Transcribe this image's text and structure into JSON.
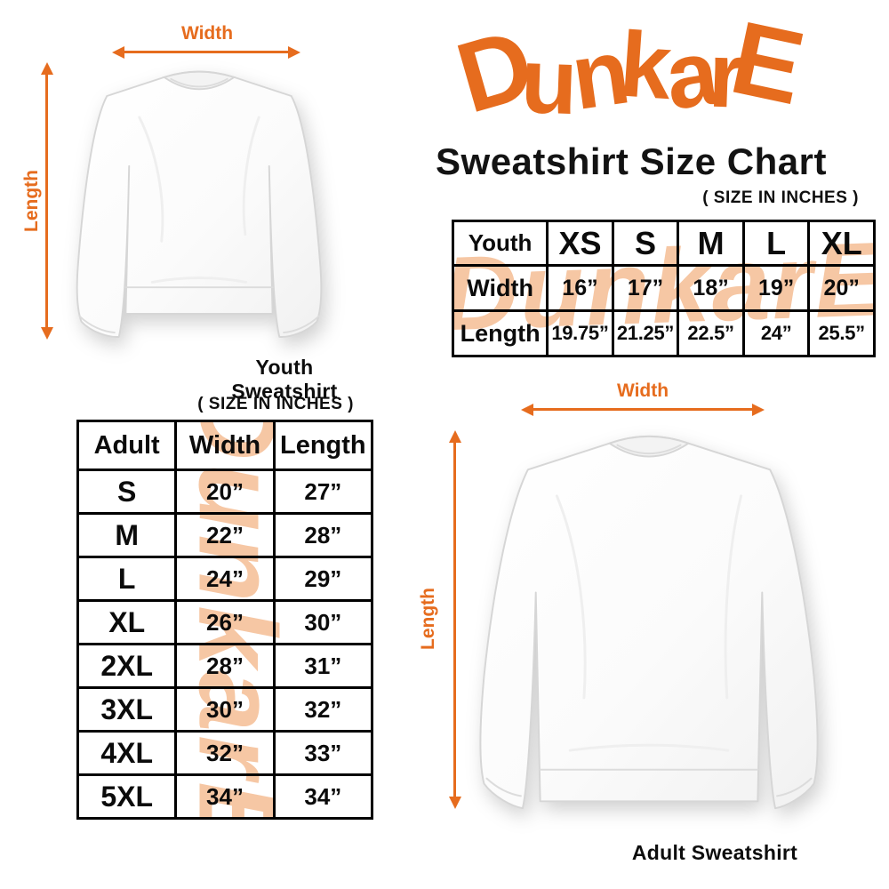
{
  "brand": {
    "logo_text": "DunkarE",
    "title": "Sweatshirt Size Chart",
    "size_note": "( SIZE IN INCHES )"
  },
  "colors": {
    "accent_orange": "#E66C1E",
    "watermark_peach": "#F6C7A4",
    "text_black": "#141414"
  },
  "watermark_text": "DunkarE",
  "youth_diagram": {
    "width_label": "Width",
    "length_label": "Length",
    "caption": "Youth Sweatshirt"
  },
  "adult_diagram": {
    "width_label": "Width",
    "length_label": "Length",
    "caption": "Adult Sweatshirt"
  },
  "youth_table": {
    "columns": [
      "Youth",
      "XS",
      "S",
      "M",
      "L",
      "XL"
    ],
    "rows": [
      {
        "label": "Width",
        "values": [
          "16”",
          "17”",
          "18”",
          "19”",
          "20”"
        ]
      },
      {
        "label": "Length",
        "values": [
          "19.75”",
          "21.25”",
          "22.5”",
          "24”",
          "25.5”"
        ]
      }
    ]
  },
  "adult_table": {
    "size_note": "( SIZE IN INCHES )",
    "columns": [
      "Adult",
      "Width",
      "Length"
    ],
    "rows": [
      {
        "size": "S",
        "width": "20”",
        "length": "27”"
      },
      {
        "size": "M",
        "width": "22”",
        "length": "28”"
      },
      {
        "size": "L",
        "width": "24”",
        "length": "29”"
      },
      {
        "size": "XL",
        "width": "26”",
        "length": "30”"
      },
      {
        "size": "2XL",
        "width": "28”",
        "length": "31”"
      },
      {
        "size": "3XL",
        "width": "30”",
        "length": "32”"
      },
      {
        "size": "4XL",
        "width": "32”",
        "length": "33”"
      },
      {
        "size": "5XL",
        "width": "34”",
        "length": "34”"
      }
    ]
  },
  "chart_data": [
    {
      "type": "table",
      "title": "Youth Sweatshirt sizes (inches)",
      "columns": [
        "Youth",
        "XS",
        "S",
        "M",
        "L",
        "XL"
      ],
      "rows": [
        [
          "Width",
          "16",
          "17",
          "18",
          "19",
          "20"
        ],
        [
          "Length",
          "19.75",
          "21.25",
          "22.5",
          "24",
          "25.5"
        ]
      ]
    },
    {
      "type": "table",
      "title": "Adult Sweatshirt sizes (inches)",
      "columns": [
        "Adult",
        "Width",
        "Length"
      ],
      "rows": [
        [
          "S",
          "20",
          "27"
        ],
        [
          "M",
          "22",
          "28"
        ],
        [
          "L",
          "24",
          "29"
        ],
        [
          "XL",
          "26",
          "30"
        ],
        [
          "2XL",
          "28",
          "31"
        ],
        [
          "3XL",
          "30",
          "32"
        ],
        [
          "4XL",
          "32",
          "33"
        ],
        [
          "5XL",
          "34",
          "34"
        ]
      ]
    }
  ]
}
